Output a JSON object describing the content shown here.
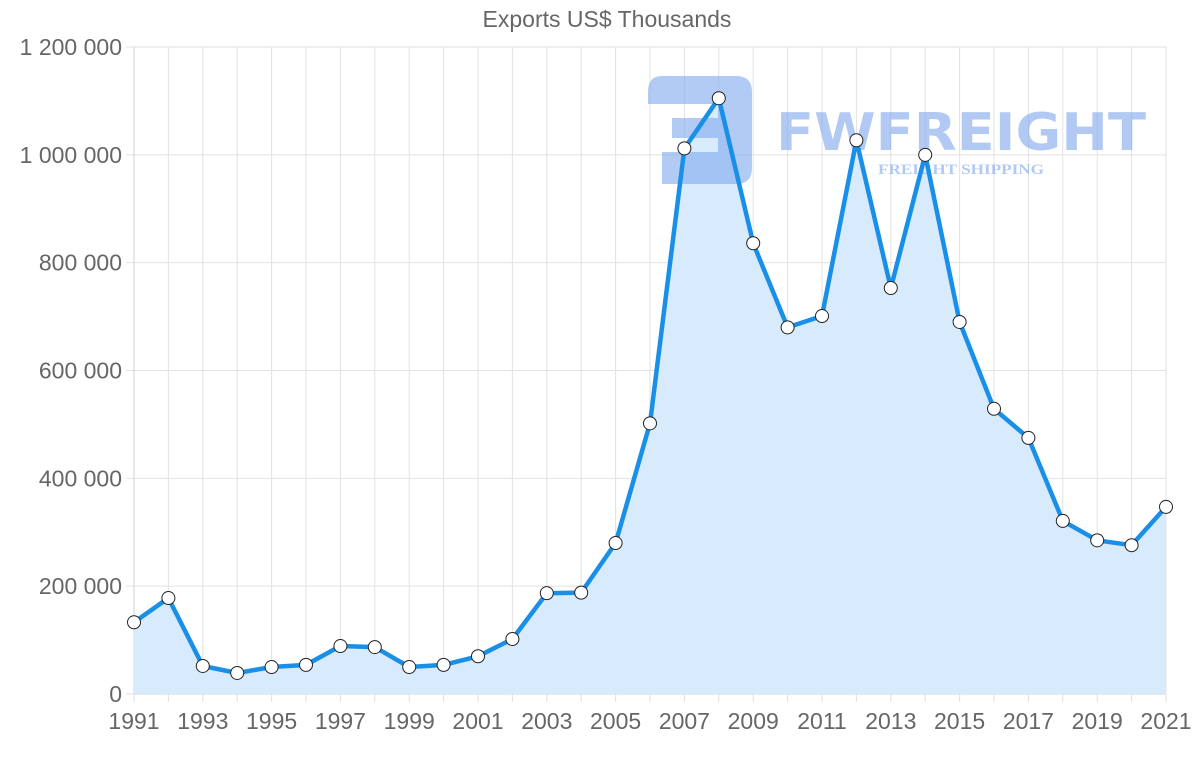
{
  "chart_data": {
    "type": "line",
    "title": "Exports US$ Thousands",
    "xlabel": "",
    "ylabel": "",
    "x": [
      1991,
      1992,
      1993,
      1994,
      1995,
      1996,
      1997,
      1998,
      1999,
      2000,
      2001,
      2002,
      2003,
      2004,
      2005,
      2006,
      2007,
      2008,
      2009,
      2010,
      2011,
      2012,
      2013,
      2014,
      2015,
      2016,
      2017,
      2018,
      2019,
      2020,
      2021
    ],
    "series": [
      {
        "name": "Exports US$ Thousands",
        "values": [
          133000,
          178000,
          52000,
          39000,
          50000,
          54000,
          89000,
          87000,
          50000,
          54000,
          70000,
          102000,
          187000,
          188000,
          280000,
          502000,
          1012000,
          1105000,
          836000,
          680000,
          701000,
          1027000,
          753000,
          1000000,
          690000,
          529000,
          475000,
          321000,
          285000,
          276000,
          347000
        ]
      }
    ],
    "ylim": [
      0,
      1200000
    ],
    "xlim": [
      1991,
      2021
    ],
    "y_ticks": [
      0,
      200000,
      400000,
      600000,
      800000,
      1000000,
      1200000
    ],
    "y_tick_labels": [
      "0",
      "200 000",
      "400 000",
      "600 000",
      "800 000",
      "1 000 000",
      "1 200 000"
    ],
    "x_tick_labels": [
      "1991",
      "1993",
      "1995",
      "1997",
      "1999",
      "2001",
      "2003",
      "2005",
      "2007",
      "2009",
      "2011",
      "2013",
      "2015",
      "2017",
      "2019",
      "2021"
    ],
    "grid": true,
    "filled_area": true,
    "legend": "none",
    "colors": {
      "line": "#1a8fe8",
      "fill": "#d8ebfc",
      "point_fill": "#ffffff",
      "point_stroke": "#222222",
      "grid": "#e2e2e2",
      "text": "#666666"
    }
  },
  "watermark": {
    "brand": "FWFREIGHT",
    "tagline": "FREIGHT SHIPPING",
    "color": "#7fa8ec"
  }
}
